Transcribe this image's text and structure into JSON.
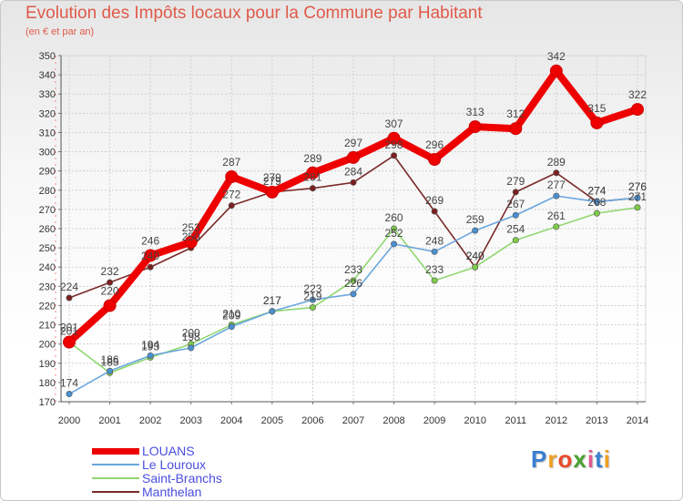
{
  "title": "Evolution des Impôts locaux pour la Commune par Habitant",
  "subtitle": "(en € et par an)",
  "logo": {
    "text": "Proxiti",
    "colors": [
      "#3a7fd0",
      "#f0a020",
      "#e84a2a",
      "#4aa030",
      "#e05a90",
      "#3a7fd0",
      "#f0a020"
    ]
  },
  "chart_data": {
    "type": "line",
    "title": "Evolution des Impôts locaux pour la Commune par Habitant",
    "subtitle": "(en € et par an)",
    "xlabel": "",
    "ylabel": "",
    "categories": [
      "2000",
      "2001",
      "2002",
      "2003",
      "2004",
      "2005",
      "2006",
      "2007",
      "2008",
      "2009",
      "2010",
      "2011",
      "2012",
      "2013",
      "2014"
    ],
    "y_ticks": [
      "170",
      "180",
      "190",
      "200",
      "210",
      "220",
      "230",
      "240",
      "250",
      "260",
      "270",
      "280",
      "290",
      "300",
      "310",
      "320",
      "330",
      "340",
      "350"
    ],
    "ylim": [
      170,
      350
    ],
    "grid": true,
    "legend_position": "bottom-left",
    "series": [
      {
        "name": "Manthelan",
        "color": "#7a2a2a",
        "marker_color": "#7a2020",
        "values": [
          224,
          232,
          240,
          250,
          272,
          279,
          281,
          284,
          298,
          269,
          240,
          279,
          289,
          274,
          276
        ],
        "labels": [
          "224",
          "232",
          "240",
          "250",
          "272",
          "279",
          "281",
          "284",
          "298",
          "269",
          "240",
          "279",
          "289",
          "274",
          "276"
        ]
      },
      {
        "name": "Saint-Branchs",
        "color": "#90d870",
        "marker_color": "#7ecb4a",
        "values": [
          201,
          185,
          193,
          200,
          210,
          217,
          219,
          233,
          260,
          233,
          240,
          254,
          261,
          268,
          271
        ],
        "labels": [
          "201",
          "185",
          "193",
          "200",
          "210",
          "217",
          "219",
          "233",
          "260",
          "233",
          "240",
          "254",
          "261",
          "268",
          "271"
        ]
      },
      {
        "name": "Le Louroux",
        "color": "#6aa6dd",
        "marker_color": "#4a90d0",
        "values": [
          174,
          186,
          194,
          198,
          209,
          217,
          223,
          226,
          252,
          248,
          259,
          267,
          277,
          274,
          276
        ],
        "labels": [
          "174",
          "186",
          "194",
          "198",
          "209",
          "217",
          "223",
          "226",
          "252",
          "248",
          "259",
          "267",
          "277",
          "274",
          "276"
        ]
      },
      {
        "name": "LOUANS",
        "color": "#ee0000",
        "marker_color": "#ee0000",
        "values": [
          201,
          220,
          246,
          253,
          287,
          279,
          289,
          297,
          307,
          296,
          313,
          312,
          342,
          315,
          322
        ],
        "labels": [
          "201",
          "220",
          "246",
          "253",
          "287",
          "279",
          "289",
          "297",
          "307",
          "296",
          "313",
          "312",
          "342",
          "315",
          "322"
        ]
      }
    ],
    "legend": [
      "LOUANS",
      "Le Louroux",
      "Saint-Branchs",
      "Manthelan"
    ]
  }
}
